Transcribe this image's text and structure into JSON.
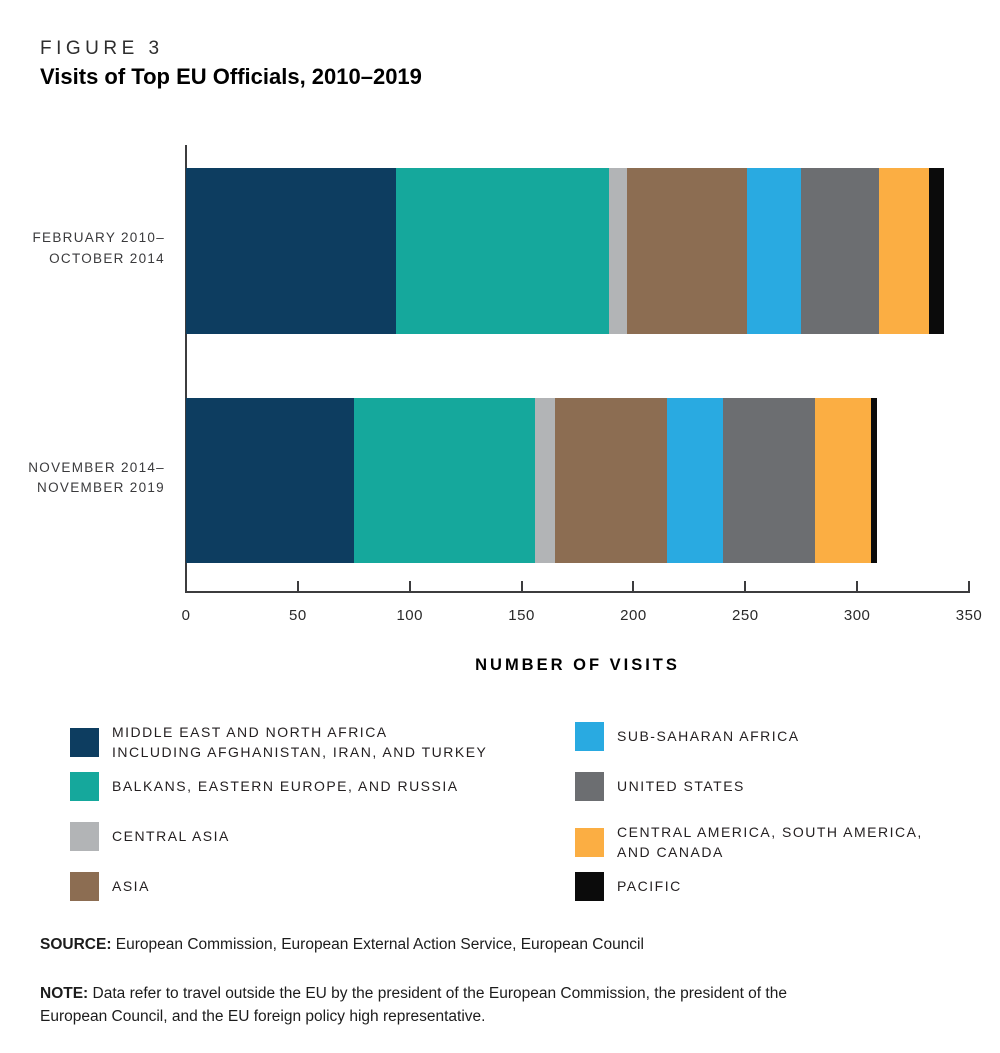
{
  "figure": {
    "label": "FIGURE 3",
    "title": "Visits of Top EU Officials, 2010–2019"
  },
  "chart_data": {
    "type": "bar",
    "orientation": "horizontal_stacked",
    "title": "Visits of Top EU Officials, 2010–2019",
    "xlabel": "NUMBER OF VISITS",
    "ylabel": "",
    "xlim": [
      0,
      350
    ],
    "xticks": [
      0,
      50,
      100,
      150,
      200,
      250,
      300,
      350
    ],
    "grid": false,
    "legend_position": "below",
    "categories": [
      "FEBRUARY 2010–OCTOBER 2014",
      "NOVEMBER 2014–NOVEMBER 2019"
    ],
    "category_label_lines": [
      [
        "FEBRUARY 2010–",
        "OCTOBER 2014"
      ],
      [
        "NOVEMBER 2014–",
        "NOVEMBER 2019"
      ]
    ],
    "series": [
      {
        "name": "MIDDLE EAST AND NORTH AFRICA INCLUDING AFGHANISTAN, IRAN, AND TURKEY",
        "slug": "middle-east-north-africa",
        "color": "#0d3d60",
        "values": [
          94,
          75
        ]
      },
      {
        "name": "BALKANS, EASTERN EUROPE, AND RUSSIA",
        "slug": "balkans-eastern-europe-russia",
        "color": "#15a89c",
        "values": [
          95,
          81
        ]
      },
      {
        "name": "CENTRAL ASIA",
        "slug": "central-asia",
        "color": "#b2b4b6",
        "values": [
          8,
          9
        ]
      },
      {
        "name": "ASIA",
        "slug": "asia",
        "color": "#8c6d52",
        "values": [
          54,
          50
        ]
      },
      {
        "name": "SUB-SAHARAN AFRICA",
        "slug": "sub-saharan-africa",
        "color": "#29aae1",
        "values": [
          24,
          25
        ]
      },
      {
        "name": "UNITED STATES",
        "slug": "united-states",
        "color": "#6c6e71",
        "values": [
          35,
          41
        ]
      },
      {
        "name": "CENTRAL AMERICA, SOUTH AMERICA, AND CANADA",
        "slug": "central-america-south-america-canada",
        "color": "#fbae43",
        "values": [
          22,
          25
        ]
      },
      {
        "name": "PACIFIC",
        "slug": "pacific",
        "color": "#0b0b0b",
        "values": [
          7,
          3
        ]
      }
    ],
    "totals": [
      339,
      309
    ]
  },
  "legend": {
    "columns": [
      [
        {
          "slug": "middle-east-north-africa",
          "color": "#0d3d60",
          "lines": [
            "MIDDLE EAST AND NORTH AFRICA",
            "INCLUDING AFGHANISTAN, IRAN, AND TURKEY"
          ]
        },
        {
          "slug": "balkans-eastern-europe-russia",
          "color": "#15a89c",
          "lines": [
            "BALKANS, EASTERN EUROPE, AND RUSSIA"
          ]
        },
        {
          "slug": "central-asia",
          "color": "#b2b4b6",
          "lines": [
            "CENTRAL ASIA"
          ]
        },
        {
          "slug": "asia",
          "color": "#8c6d52",
          "lines": [
            "ASIA"
          ]
        }
      ],
      [
        {
          "slug": "sub-saharan-africa",
          "color": "#29aae1",
          "lines": [
            "SUB-SAHARAN AFRICA"
          ]
        },
        {
          "slug": "united-states",
          "color": "#6c6e71",
          "lines": [
            "UNITED STATES"
          ]
        },
        {
          "slug": "central-america-south-america-canada",
          "color": "#fbae43",
          "lines": [
            "CENTRAL AMERICA, SOUTH AMERICA,",
            "AND CANADA"
          ]
        },
        {
          "slug": "pacific",
          "color": "#0b0b0b",
          "lines": [
            "PACIFIC"
          ]
        }
      ]
    ]
  },
  "source": {
    "label": "SOURCE:",
    "text": " European Commission, European External Action Service, European Council"
  },
  "note": {
    "label": "NOTE:",
    "line1": " Data refer to travel outside the EU by the president of the European Commission, the president of the",
    "line2": "European Council, and the EU foreign policy high representative."
  }
}
